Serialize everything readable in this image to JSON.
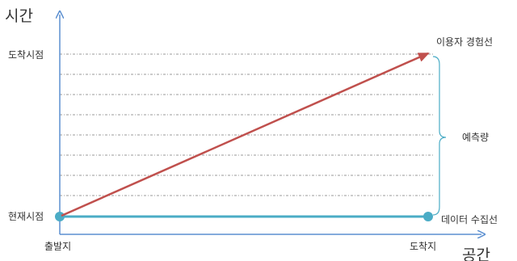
{
  "axes": {
    "y_title": "시간",
    "x_title": "공간",
    "y_ticks": {
      "top": "도착시점",
      "bottom": "현재시점"
    },
    "x_ticks": {
      "left": "출발지",
      "right": "도착지"
    }
  },
  "lines": {
    "user_experience": {
      "label": "이용자 경험선",
      "color": "#c0504d"
    },
    "data_collection": {
      "label": "데이터 수집선",
      "color": "#4bacc6"
    }
  },
  "brace": {
    "label": "예측량"
  },
  "colors": {
    "axis": "#5b8fd0",
    "grid": "#9a9a9a"
  }
}
